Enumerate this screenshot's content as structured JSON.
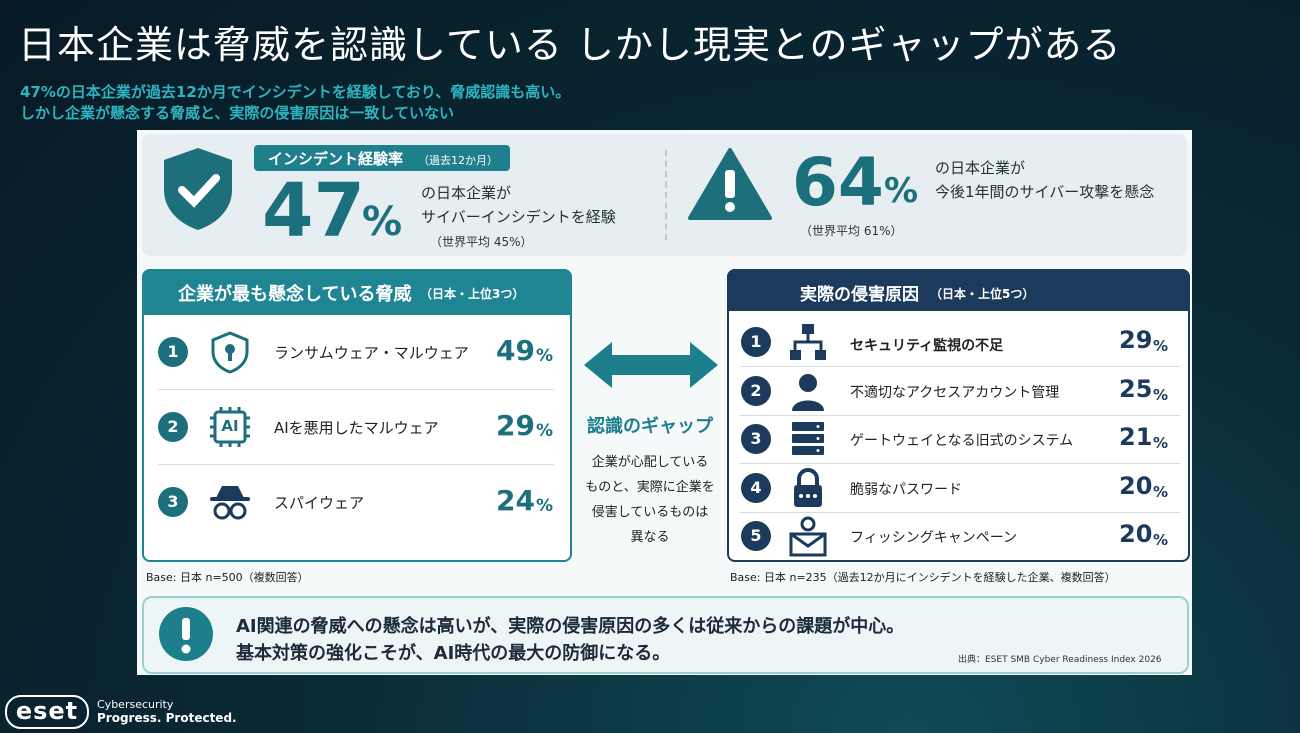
{
  "title": "日本企業は脅威を認識している しかし現実とのギャップがある",
  "subtitle": [
    "47%の日本企業が過去12か月でインシデントを経験しており、脅威認識も高い。",
    "しかし企業が懸念する脅威と、実際の侵害原因は一致していない"
  ],
  "stats": [
    {
      "badge": "インシデント経験率",
      "badge_note": "（過去12か月）",
      "value": 47,
      "unit": "%",
      "text": [
        "の日本企業が",
        "サイバーインシデントを経験"
      ],
      "note": "（世界平均 45%）"
    },
    {
      "value": 64,
      "unit": "%",
      "text": [
        "の日本企業が",
        "今後1年間のサイバー攻撃を懸念"
      ],
      "note": "（世界平均 61%）"
    }
  ],
  "left_panel": {
    "title": "企業が最も懸念している脅威",
    "title_note": "（日本・上位3つ）",
    "items": [
      {
        "rank": 1,
        "label": "ランサムウェア・マルウェア",
        "value": 49,
        "unit": "%"
      },
      {
        "rank": 2,
        "icon_label": "AI",
        "label": "AIを悪用したマルウェア",
        "value": 29,
        "unit": "%"
      },
      {
        "rank": 3,
        "label": "スパイウェア",
        "value": 24,
        "unit": "%"
      }
    ],
    "base": "Base: 日本 n=500（複数回答）"
  },
  "gap": {
    "title": "認識のギャップ",
    "text": [
      "企業が心配している",
      "ものと、実際に企業を",
      "侵害しているものは",
      "異なる"
    ]
  },
  "right_panel": {
    "title": "実際の侵害原因",
    "title_note": "（日本・上位5つ）",
    "items": [
      {
        "rank": 1,
        "label": "セキュリティ監視の不足",
        "value": 29,
        "unit": "%"
      },
      {
        "rank": 2,
        "label": "不適切なアクセスアカウント管理",
        "value": 25,
        "unit": "%"
      },
      {
        "rank": 3,
        "label": "ゲートウェイとなる旧式のシステム",
        "value": 21,
        "unit": "%"
      },
      {
        "rank": 4,
        "label": "脆弱なパスワード",
        "value": 20,
        "unit": "%"
      },
      {
        "rank": 5,
        "label": "フィッシングキャンペーン",
        "value": 20,
        "unit": "%"
      }
    ],
    "base": "Base: 日本 n=235（過去12か月にインシデントを経験した企業、複数回答）"
  },
  "conclusion": {
    "text": [
      "AI関連の脅威への懸念は高いが、実際の侵害原因の多くは従来からの課題が中心。",
      "基本対策の強化こそが、AI時代の最大の防御になる。"
    ],
    "source": "出典：ESET SMB Cyber Readiness Index 2026"
  },
  "footer": {
    "logo": "eset",
    "tagline": [
      "Cybersecurity",
      "Progress. Protected."
    ]
  }
}
